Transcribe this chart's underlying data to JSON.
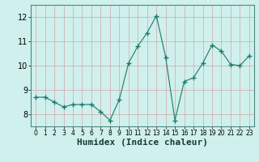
{
  "x": [
    0,
    1,
    2,
    3,
    4,
    5,
    6,
    7,
    8,
    9,
    10,
    11,
    12,
    13,
    14,
    15,
    16,
    17,
    18,
    19,
    20,
    21,
    22,
    23
  ],
  "y": [
    8.7,
    8.7,
    8.5,
    8.3,
    8.4,
    8.4,
    8.4,
    8.1,
    7.75,
    8.6,
    10.1,
    10.8,
    11.35,
    12.05,
    10.35,
    7.75,
    9.35,
    9.5,
    10.1,
    10.85,
    10.6,
    10.05,
    10.0,
    10.4
  ],
  "xlabel": "Humidex (Indice chaleur)",
  "ylim": [
    7.5,
    12.5
  ],
  "xlim": [
    -0.5,
    23.5
  ],
  "yticks": [
    8,
    9,
    10,
    11,
    12
  ],
  "xticks": [
    0,
    1,
    2,
    3,
    4,
    5,
    6,
    7,
    8,
    9,
    10,
    11,
    12,
    13,
    14,
    15,
    16,
    17,
    18,
    19,
    20,
    21,
    22,
    23
  ],
  "line_color": "#1a7a6e",
  "marker_color": "#1a7a6e",
  "bg_color": "#cff0ec",
  "grid_color": "#d4a0a0",
  "spine_color": "#4a8a80",
  "xlabel_fontsize": 8,
  "tick_fontsize": 7
}
